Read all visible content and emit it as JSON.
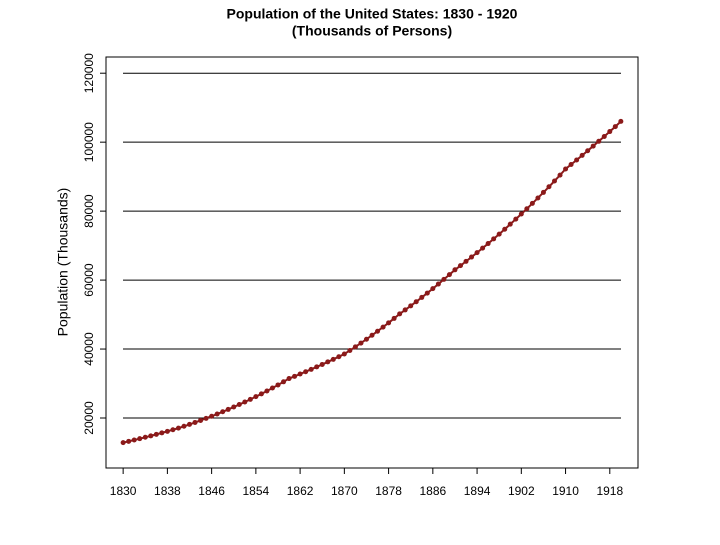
{
  "chart_data": {
    "type": "line",
    "title": "Population of the United States: 1830 - 1920",
    "subtitle": "(Thousands of Persons)",
    "y_label": "Population (Thousands)",
    "x": [
      1830,
      1831,
      1832,
      1833,
      1834,
      1835,
      1836,
      1837,
      1838,
      1839,
      1840,
      1841,
      1842,
      1843,
      1844,
      1845,
      1846,
      1847,
      1848,
      1849,
      1850,
      1851,
      1852,
      1853,
      1854,
      1855,
      1856,
      1857,
      1858,
      1859,
      1860,
      1861,
      1862,
      1863,
      1864,
      1865,
      1866,
      1867,
      1868,
      1869,
      1870,
      1871,
      1872,
      1873,
      1874,
      1875,
      1876,
      1877,
      1878,
      1879,
      1880,
      1881,
      1882,
      1883,
      1884,
      1885,
      1886,
      1887,
      1888,
      1889,
      1890,
      1891,
      1892,
      1893,
      1894,
      1895,
      1896,
      1897,
      1898,
      1899,
      1900,
      1901,
      1902,
      1903,
      1904,
      1905,
      1906,
      1907,
      1908,
      1909,
      1910,
      1911,
      1912,
      1913,
      1914,
      1915,
      1916,
      1917,
      1918,
      1919,
      1920
    ],
    "series": [
      {
        "color": "#8b1a1a",
        "values": [
          12866,
          13235,
          13615,
          14006,
          14408,
          14821,
          15247,
          15684,
          16134,
          16597,
          17069,
          17600,
          18147,
          18711,
          19293,
          19893,
          20512,
          21150,
          21808,
          22486,
          23192,
          23909,
          24648,
          25410,
          26195,
          27004,
          27839,
          28699,
          29586,
          30501,
          31443,
          32091,
          32752,
          33427,
          34115,
          34818,
          35535,
          36267,
          37014,
          37777,
          38558,
          39588,
          40645,
          41730,
          42844,
          43988,
          45163,
          46369,
          47607,
          48878,
          50189,
          51343,
          52524,
          53732,
          54968,
          56232,
          57525,
          58848,
          60202,
          61587,
          62980,
          64189,
          65422,
          66678,
          67958,
          69263,
          70593,
          71948,
          73329,
          74737,
          76212,
          77675,
          79167,
          80687,
          82236,
          83815,
          85424,
          87064,
          88736,
          90439,
          92228,
          93519,
          94828,
          96156,
          97502,
          98867,
          100252,
          101655,
          103078,
          104521,
          106022
        ]
      }
    ],
    "xlim": [
      1826.9,
      1923.1
    ],
    "xticks": [
      1830,
      1838,
      1846,
      1854,
      1862,
      1870,
      1878,
      1886,
      1894,
      1902,
      1910,
      1918
    ],
    "ylim": [
      5500,
      124700
    ],
    "yticks": [
      20000,
      40000,
      60000,
      80000,
      100000,
      120000
    ],
    "grid": true
  }
}
